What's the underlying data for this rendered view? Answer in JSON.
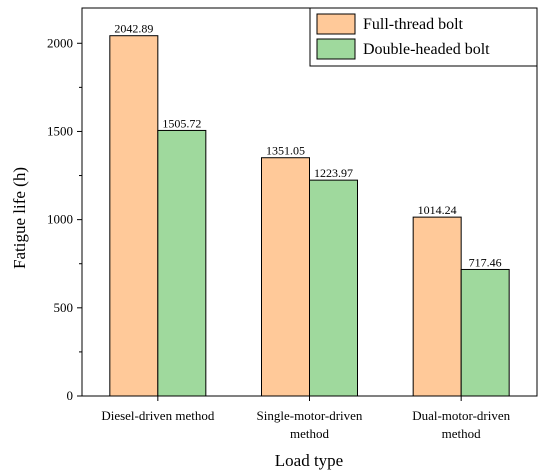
{
  "chart_data": {
    "type": "bar",
    "categories": [
      [
        "Diesel-driven method"
      ],
      [
        "Single-motor-driven",
        "method"
      ],
      [
        "Dual-motor-driven",
        "method"
      ]
    ],
    "series": [
      {
        "name": "Full-thread bolt",
        "values": [
          2042.89,
          1351.05,
          1014.24
        ],
        "labels": [
          "2042.89",
          "1351.05",
          "1014.24"
        ],
        "color": "#FFC999"
      },
      {
        "name": "Double-headed bolt",
        "values": [
          1505.72,
          1223.97,
          717.46
        ],
        "labels": [
          "1505.72",
          "1223.97",
          "717.46"
        ],
        "color": "#9FD99D"
      }
    ],
    "xlabel": "Load type",
    "ylabel": "Fatigue life (h)",
    "ylim": [
      0,
      2200
    ],
    "yticks": [
      0,
      500,
      1000,
      1500,
      2000
    ],
    "grid": false,
    "legend_position": "top-right"
  }
}
